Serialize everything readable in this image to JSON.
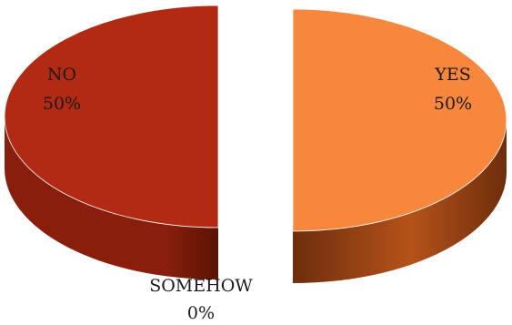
{
  "chart_data": {
    "type": "pie",
    "style": "3d",
    "categories": [
      "YES",
      "NO",
      "SOMEHOW"
    ],
    "values": [
      50,
      50,
      0
    ],
    "data_labels": [
      {
        "category": "NO",
        "value": "50%"
      },
      {
        "category": "YES",
        "value": "50%"
      },
      {
        "category": "SOMEHOW",
        "value": "0%"
      }
    ],
    "colors": {
      "YES_top": "#f7873c",
      "YES_side": "#b5521a",
      "YES_side_dark": "#6e2d0c",
      "NO_top": "#b22a14",
      "NO_side": "#8a1e0c",
      "NO_side_dark": "#5a1306",
      "edge": "#ffffff"
    },
    "title": "",
    "legend": "none"
  }
}
